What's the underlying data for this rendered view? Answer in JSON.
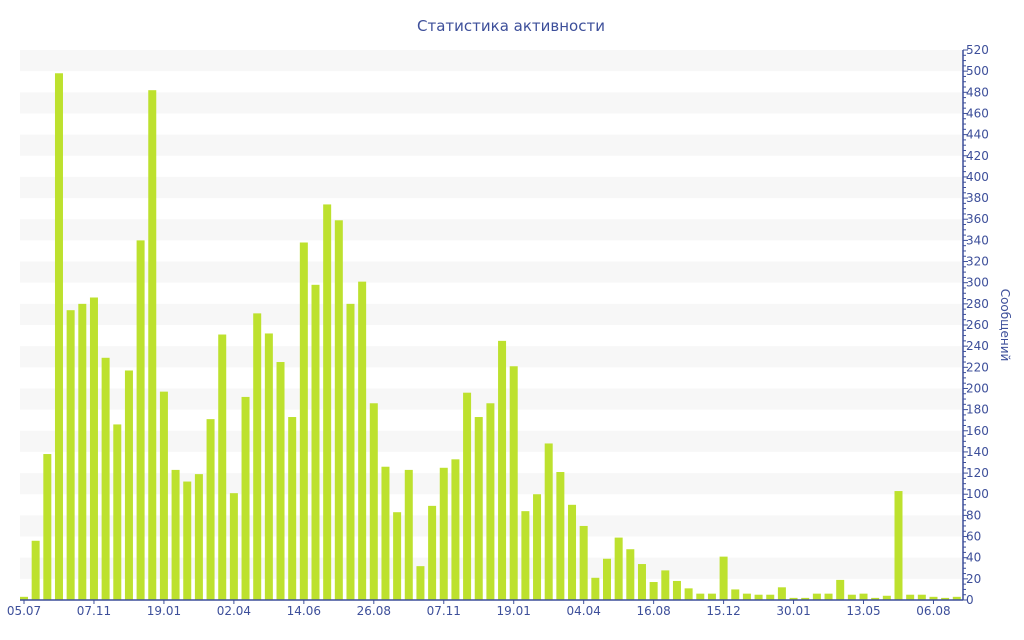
{
  "chart_data": {
    "type": "bar",
    "title": "Статистика активности",
    "xlabel": "",
    "ylabel": "Сообщений",
    "ylim": [
      0,
      520
    ],
    "yticks": [
      0,
      20,
      40,
      60,
      80,
      100,
      120,
      140,
      160,
      180,
      200,
      220,
      240,
      260,
      280,
      300,
      320,
      340,
      360,
      380,
      400,
      420,
      440,
      460,
      480,
      500,
      520
    ],
    "grid": "alternating horizontal bands",
    "y_axis_side": "right",
    "x_tick_labels": [
      "05.07",
      "07.11",
      "19.01",
      "02.04",
      "14.06",
      "26.08",
      "07.11",
      "19.01",
      "04.04",
      "16.08",
      "15.12",
      "30.01",
      "13.05",
      "06.08"
    ],
    "x_tick_every_n_bars": 6,
    "values": [
      3,
      56,
      138,
      498,
      274,
      280,
      286,
      229,
      166,
      217,
      340,
      482,
      197,
      123,
      112,
      119,
      171,
      251,
      101,
      192,
      271,
      252,
      225,
      173,
      338,
      298,
      374,
      359,
      280,
      301,
      186,
      126,
      83,
      123,
      32,
      89,
      125,
      133,
      196,
      173,
      186,
      245,
      221,
      84,
      100,
      148,
      121,
      90,
      70,
      21,
      39,
      59,
      48,
      34,
      17,
      28,
      18,
      11,
      6,
      6,
      41,
      10,
      6,
      5,
      5,
      12,
      2,
      2,
      6,
      6,
      19,
      5,
      6,
      2,
      4,
      103,
      5,
      5,
      3,
      2,
      3
    ],
    "colors": {
      "bar": "#bde12e",
      "axis": "#3d4f9a",
      "band": "#f7f7f7"
    }
  }
}
